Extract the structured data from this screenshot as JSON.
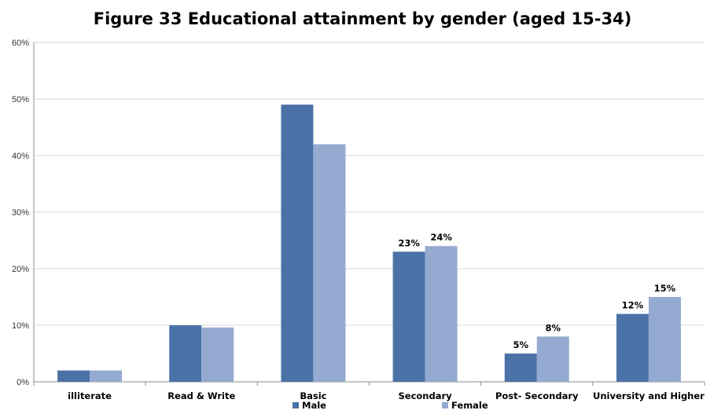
{
  "chart_data": {
    "type": "bar",
    "title": "Figure 33 Educational attainment by gender (aged 15-34)",
    "categories": [
      "illiterate",
      "Read & Write",
      "Basic",
      "Secondary",
      "Post- Secondary",
      "University and Higher"
    ],
    "series": [
      {
        "name": "Male",
        "color": "#4a72a6",
        "values": [
          2,
          10,
          49,
          23,
          5,
          12
        ],
        "labels": [
          null,
          null,
          null,
          "23%",
          "5%",
          "12%"
        ]
      },
      {
        "name": "Female",
        "color": "#95aad1",
        "values": [
          2,
          9.6,
          42,
          24,
          8,
          15
        ],
        "labels": [
          null,
          null,
          null,
          "24%",
          "8%",
          "15%"
        ]
      }
    ],
    "ylim": [
      0,
      60
    ],
    "yticks": [
      "0%",
      "10%",
      "20%",
      "30%",
      "40%",
      "50%",
      "60%"
    ],
    "grid": true,
    "legend": "bottom",
    "xlabel": "",
    "ylabel": ""
  }
}
